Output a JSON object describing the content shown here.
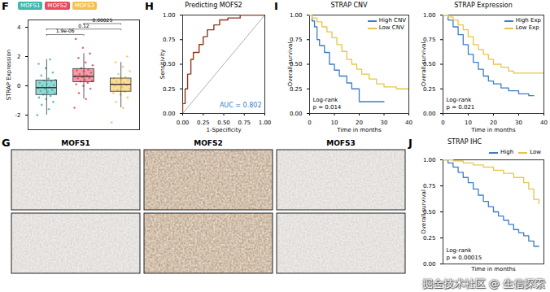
{
  "chart_data": [
    {
      "panel": "F",
      "type": "box",
      "y_label": "STRAP Expression",
      "categories": [
        "MOFS1",
        "MOFS2",
        "MOFS3"
      ],
      "colors": [
        "#3FB8AF",
        "#E84A5F",
        "#F2C14E"
      ],
      "values": [
        [
          -2.0,
          -1.6,
          -1.3,
          -1.1,
          -0.9,
          -0.8,
          -0.7,
          -0.6,
          -0.5,
          -0.4,
          -0.35,
          -0.3,
          -0.2,
          -0.15,
          -0.1,
          0,
          0.05,
          0.1,
          0.2,
          0.3,
          0.35,
          0.4,
          0.5,
          0.7,
          0.9,
          1.2,
          1.5,
          1.8
        ],
        [
          -1.5,
          -0.9,
          -0.5,
          -0.2,
          0,
          0.1,
          0.2,
          0.3,
          0.35,
          0.4,
          0.5,
          0.55,
          0.6,
          0.65,
          0.7,
          0.8,
          0.9,
          1.0,
          1.05,
          1.1,
          1.2,
          1.4,
          1.6,
          1.9,
          2.2,
          2.6,
          3.2
        ],
        [
          -2.5,
          -1.5,
          -1.1,
          -0.8,
          -0.6,
          -0.5,
          -0.4,
          -0.3,
          -0.2,
          -0.1,
          0,
          0.05,
          0.1,
          0.15,
          0.2,
          0.3,
          0.4,
          0.45,
          0.5,
          0.6,
          0.8,
          1.0,
          1.3,
          1.6,
          2.0
        ]
      ],
      "ylim": [
        -3,
        4.5
      ],
      "yticks": [
        -2,
        0,
        2,
        4
      ],
      "tick_labels": "y",
      "legend": "top-left",
      "comparisons": [
        {
          "groups": [
            "MOFS1",
            "MOFS2"
          ],
          "label": "1.9e-06"
        },
        {
          "groups": [
            "MOFS1",
            "MOFS3"
          ],
          "label": "0.12"
        },
        {
          "groups": [
            "MOFS2",
            "MOFS3"
          ],
          "label": "0.00025"
        }
      ]
    },
    {
      "panel": "H",
      "type": "line",
      "title": "Predicting MOFS2",
      "x_label": "1-Specificity",
      "y_label": "Sensitivity",
      "color": "#8B3A1E",
      "x": [
        0,
        0,
        0.03,
        0.03,
        0.06,
        0.06,
        0.1,
        0.1,
        0.13,
        0.13,
        0.2,
        0.2,
        0.25,
        0.25,
        0.3,
        0.3,
        0.38,
        0.38,
        0.45,
        0.45,
        0.55,
        0.55,
        0.7,
        0.7,
        1
      ],
      "values": [
        0,
        0.1,
        0.1,
        0.25,
        0.25,
        0.4,
        0.4,
        0.55,
        0.55,
        0.62,
        0.62,
        0.7,
        0.7,
        0.78,
        0.78,
        0.85,
        0.85,
        0.9,
        0.9,
        0.95,
        0.95,
        0.97,
        0.97,
        1.0,
        1.0
      ],
      "xlim": [
        0,
        1
      ],
      "ylim": [
        0,
        1
      ],
      "xticks": [
        {
          "value": 0,
          "label": "0.00"
        },
        {
          "value": 0.25,
          "label": "0.25"
        },
        {
          "value": 0.5,
          "label": "0.50"
        },
        {
          "value": 0.75,
          "label": "0.75"
        },
        {
          "value": 1,
          "label": "1.00"
        }
      ],
      "yticks": [
        {
          "value": 0,
          "label": "0.00"
        },
        {
          "value": 0.25,
          "label": "0.25"
        },
        {
          "value": 0.5,
          "label": "0.50"
        },
        {
          "value": 0.75,
          "label": "0.75"
        },
        {
          "value": 1,
          "label": "1.00"
        }
      ],
      "annotations": [
        "AUC = 0.802"
      ]
    },
    {
      "panel": "I",
      "type": "line",
      "title": "STRAP CNV",
      "x_label": "Time in months",
      "y_label": "Overall survival",
      "line_style": "step",
      "legend": "top-right",
      "series": [
        {
          "name": "High CNV",
          "color": "#3A7DC9",
          "x": [
            0,
            1,
            2,
            3,
            4,
            6,
            8,
            10,
            12,
            15,
            17,
            20,
            30
          ],
          "values": [
            1,
            0.94,
            0.88,
            0.75,
            0.69,
            0.62,
            0.5,
            0.44,
            0.38,
            0.31,
            0.25,
            0.12,
            0.12
          ]
        },
        {
          "name": "Low CNV",
          "color": "#E8C547",
          "x": [
            0,
            1,
            3,
            5,
            7,
            9,
            11,
            13,
            15,
            17,
            19,
            21,
            24,
            27,
            30,
            35,
            40
          ],
          "values": [
            1,
            0.97,
            0.93,
            0.88,
            0.83,
            0.77,
            0.7,
            0.63,
            0.55,
            0.5,
            0.45,
            0.4,
            0.35,
            0.3,
            0.27,
            0.25,
            0.25
          ]
        }
      ],
      "xlim": [
        0,
        40
      ],
      "xticks": [
        0,
        10,
        20,
        30,
        40
      ],
      "ylim": [
        0,
        1
      ],
      "yticks": [
        {
          "value": 0,
          "label": "0.00"
        },
        {
          "value": 0.25,
          "label": "0.25"
        },
        {
          "value": 0.5,
          "label": "0.50"
        },
        {
          "value": 0.75,
          "label": "0.75"
        },
        {
          "value": 1,
          "label": "1.00"
        }
      ],
      "annotations": [
        "Log-rank",
        "p = 0.014"
      ]
    },
    {
      "type": "line",
      "title": "STRAP Expression",
      "x_label": "Time in months",
      "y_label": "Overall survival",
      "line_style": "step",
      "legend": "top-right",
      "series": [
        {
          "name": "High Exp",
          "color": "#3A7DC9",
          "x": [
            0,
            2,
            4,
            6,
            8,
            10,
            12,
            14,
            16,
            18,
            20,
            23,
            26,
            30,
            34,
            36
          ],
          "values": [
            1,
            0.95,
            0.88,
            0.8,
            0.7,
            0.6,
            0.52,
            0.45,
            0.38,
            0.33,
            0.3,
            0.26,
            0.23,
            0.2,
            0.18,
            0.18
          ]
        },
        {
          "name": "Low Exp",
          "color": "#E8C547",
          "x": [
            0,
            2,
            4,
            6,
            8,
            10,
            12,
            14,
            16,
            18,
            20,
            23,
            26,
            28,
            40
          ],
          "values": [
            1,
            0.98,
            0.95,
            0.9,
            0.85,
            0.78,
            0.7,
            0.65,
            0.6,
            0.55,
            0.5,
            0.47,
            0.43,
            0.41,
            0.41
          ]
        }
      ],
      "xlim": [
        0,
        40
      ],
      "xticks": [
        0,
        10,
        20,
        30,
        40
      ],
      "ylim": [
        0,
        1
      ],
      "yticks": [
        {
          "value": 0,
          "label": "0.00"
        },
        {
          "value": 0.25,
          "label": "0.25"
        },
        {
          "value": 0.5,
          "label": "0.50"
        },
        {
          "value": 0.75,
          "label": "0.75"
        },
        {
          "value": 1,
          "label": "1.00"
        }
      ],
      "annotations": [
        "Log-rank",
        "p = 0.021"
      ]
    },
    {
      "panel": "J",
      "type": "line",
      "title": "STRAP IHC",
      "x_label": "Time in months",
      "y_label": "Overall survival",
      "line_style": "step",
      "legend": "top-right",
      "tick_labels": "y",
      "series": [
        {
          "name": "High",
          "color": "#3A7DC9",
          "x": [
            0,
            5,
            10,
            15,
            20,
            25,
            30,
            35,
            40,
            45,
            50,
            55,
            60,
            65,
            70,
            75,
            80,
            85,
            90,
            95
          ],
          "values": [
            1,
            0.97,
            0.93,
            0.88,
            0.83,
            0.78,
            0.72,
            0.66,
            0.6,
            0.55,
            0.5,
            0.46,
            0.42,
            0.38,
            0.33,
            0.3,
            0.27,
            0.22,
            0.17,
            0.17
          ]
        },
        {
          "name": "Low",
          "color": "#E8C547",
          "x": [
            0,
            10,
            20,
            30,
            40,
            50,
            60,
            70,
            80,
            85,
            90,
            95
          ],
          "values": [
            1,
            0.99,
            0.97,
            0.95,
            0.93,
            0.9,
            0.87,
            0.83,
            0.78,
            0.72,
            0.62,
            0.58
          ]
        }
      ],
      "xlim": [
        0,
        100
      ],
      "ylim": [
        0,
        1
      ],
      "yticks": [
        {
          "value": 0,
          "label": "0.00"
        },
        {
          "value": 0.25,
          "label": "0.25"
        },
        {
          "value": 0.5,
          "label": "0.50"
        },
        {
          "value": 0.75,
          "label": "0.75"
        },
        {
          "value": 1,
          "label": "1.00"
        }
      ],
      "annotations": [
        "Log-rank",
        "p = 0.00015"
      ]
    }
  ],
  "images": {
    "panel": "G",
    "columns": [
      "MOFS1",
      "MOFS2",
      "MOFS3"
    ],
    "rows": 2
  },
  "watermark": "掘金技术社区 @ 生信探索"
}
